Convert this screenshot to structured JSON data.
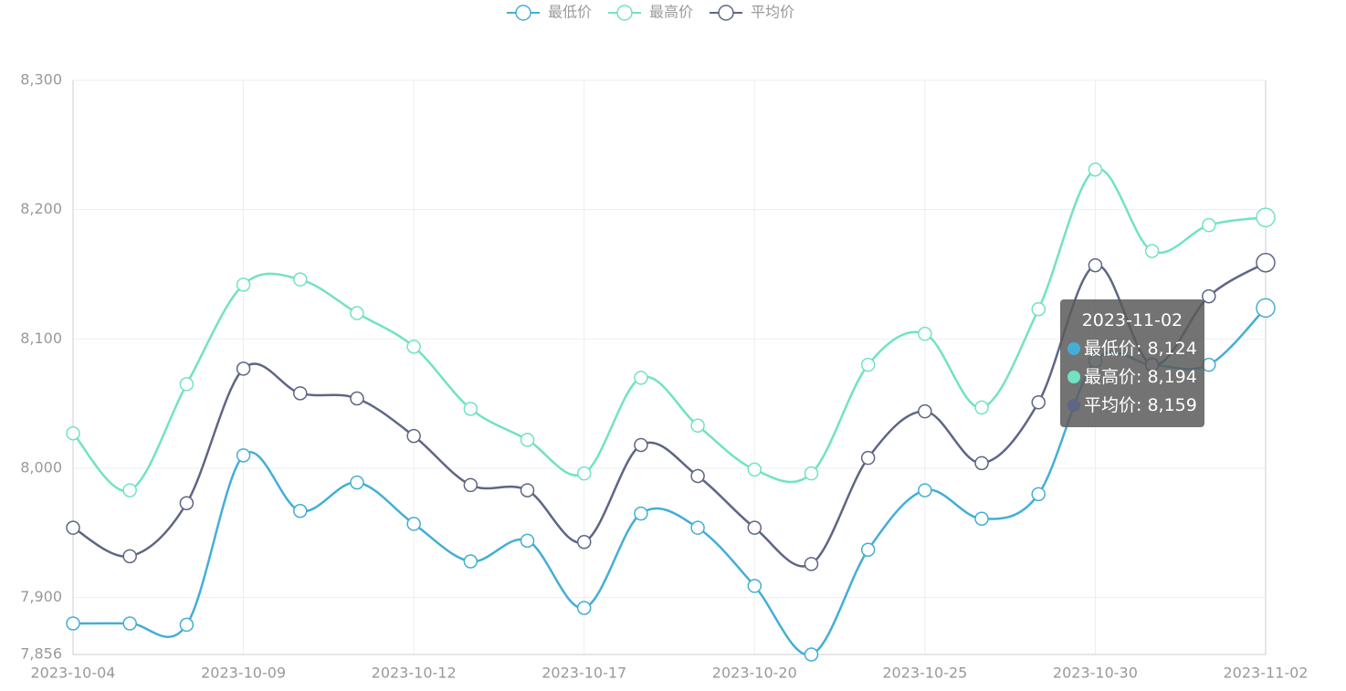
{
  "chart_data": {
    "type": "line",
    "categories": [
      "2023-10-04",
      null,
      null,
      "2023-10-09",
      null,
      null,
      "2023-10-12",
      null,
      null,
      "2023-10-17",
      null,
      null,
      "2023-10-20",
      null,
      null,
      "2023-10-25",
      null,
      null,
      "2023-10-30",
      null,
      null,
      "2023-11-02"
    ],
    "series": [
      {
        "name": "最低价",
        "color": "#44aed6",
        "values": [
          7880,
          7880,
          7879,
          8010,
          7967,
          7989,
          7957,
          7928,
          7944,
          7892,
          7965,
          7954,
          7909,
          7856,
          7937,
          7983,
          7961,
          7980,
          8083,
          8080,
          8080,
          8124
        ],
        "value_labels": [
          null,
          null,
          null,
          null,
          null,
          null,
          null,
          null,
          null,
          null,
          null,
          null,
          null,
          null,
          null,
          null,
          null,
          null,
          null,
          null,
          null,
          "8,124"
        ]
      },
      {
        "name": "最高价",
        "color": "#72e2c4",
        "values": [
          8027,
          7983,
          8065,
          8142,
          8146,
          8120,
          8094,
          8046,
          8022,
          7996,
          8070,
          8033,
          7999,
          7996,
          8080,
          8104,
          8047,
          8123,
          8231,
          8168,
          8188,
          8194
        ],
        "value_labels": [
          null,
          null,
          null,
          null,
          null,
          null,
          null,
          null,
          null,
          null,
          null,
          null,
          null,
          null,
          null,
          null,
          null,
          null,
          null,
          null,
          null,
          "8,194"
        ]
      },
      {
        "name": "平均价",
        "color": "#5d6684",
        "values": [
          7954,
          7932,
          7973,
          8077,
          8058,
          8054,
          8025,
          7987,
          7983,
          7943,
          8018,
          7994,
          7954,
          7926,
          8008,
          8044,
          8004,
          8051,
          8157,
          8080,
          8133,
          8159
        ],
        "value_labels": [
          null,
          null,
          null,
          null,
          null,
          null,
          null,
          null,
          null,
          null,
          null,
          null,
          null,
          null,
          null,
          null,
          null,
          null,
          null,
          null,
          null,
          "8,159"
        ]
      }
    ],
    "ylim": [
      7856,
      8300
    ],
    "yticks": [
      {
        "value": 7856,
        "label": "7,856"
      },
      {
        "value": 7900,
        "label": "7,900"
      },
      {
        "value": 8000,
        "label": "8,000"
      },
      {
        "value": 8100,
        "label": "8,100"
      },
      {
        "value": 8200,
        "label": "8,200"
      },
      {
        "value": 8300,
        "label": "8,300"
      }
    ],
    "grid": true,
    "smooth": true,
    "legend": "top"
  }
}
